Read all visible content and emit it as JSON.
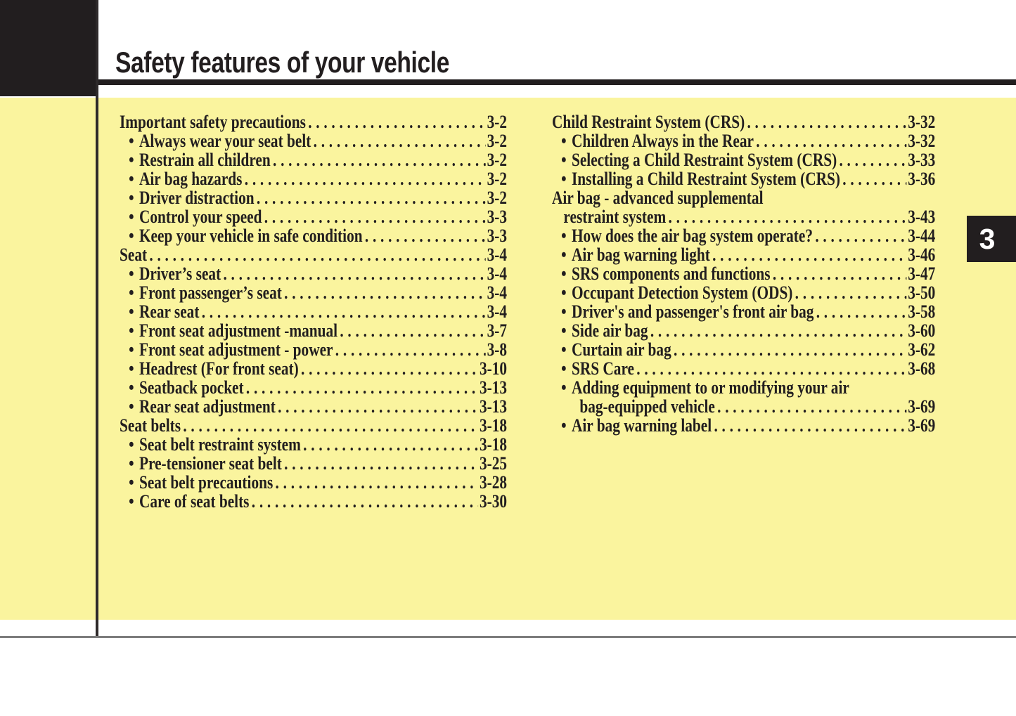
{
  "page": {
    "title": "Safety features of your vehicle",
    "chapter_tab": "3"
  },
  "colors": {
    "highlight_yellow": "#FAF49E",
    "ink": "#221E1F",
    "tab_text": "#FFFFFF",
    "footer_rule_gray": "#7D7D7D"
  },
  "toc": {
    "bullet_char": "•",
    "columns": [
      {
        "name": "left",
        "entries": [
          {
            "t": "h",
            "label": "Important safety precautions",
            "page": "3-2"
          },
          {
            "t": "b",
            "label": "Always wear your seat belt",
            "page": "3-2"
          },
          {
            "t": "b",
            "label": "Restrain all children",
            "page": "3-2"
          },
          {
            "t": "b",
            "label": "Air bag hazards",
            "page": "3-2"
          },
          {
            "t": "b",
            "label": "Driver distraction",
            "page": "3-2"
          },
          {
            "t": "b",
            "label": "Control your speed",
            "page": "3-3"
          },
          {
            "t": "b",
            "label": "Keep your vehicle in safe condition",
            "page": "3-3"
          },
          {
            "t": "h",
            "label": "Seat",
            "page": "3-4"
          },
          {
            "t": "b",
            "label": "Driver’s seat",
            "page": "3-4"
          },
          {
            "t": "b",
            "label": "Front passenger’s seat",
            "page": "3-4"
          },
          {
            "t": "b",
            "label": "Rear seat",
            "page": "3-4"
          },
          {
            "t": "b",
            "label": "Front seat adjustment -manual",
            "page": "3-7"
          },
          {
            "t": "b",
            "label": "Front seat adjustment - power",
            "page": "3-8"
          },
          {
            "t": "b",
            "label": "Headrest (For front seat)",
            "page": "3-10"
          },
          {
            "t": "b",
            "label": "Seatback pocket",
            "page": "3-13"
          },
          {
            "t": "b",
            "label": "Rear seat adjustment",
            "page": "3-13"
          },
          {
            "t": "h",
            "label": "Seat belts",
            "page": "3-18"
          },
          {
            "t": "b",
            "label": "Seat belt restraint system",
            "page": "3-18"
          },
          {
            "t": "b",
            "label": "Pre-tensioner seat belt",
            "page": "3-25"
          },
          {
            "t": "b",
            "label": "Seat belt precautions",
            "page": "3-28"
          },
          {
            "t": "b",
            "label": "Care of seat belts",
            "page": "3-30"
          }
        ]
      },
      {
        "name": "right",
        "entries": [
          {
            "t": "h",
            "label": "Child Restraint System (CRS)",
            "page": "3-32"
          },
          {
            "t": "b",
            "label": "Children Always in the Rear",
            "page": "3-32"
          },
          {
            "t": "b",
            "label": "Selecting a Child Restraint System (CRS)",
            "page": "3-33"
          },
          {
            "t": "b",
            "label": "Installing a Child Restraint System (CRS)",
            "page": "3-36"
          },
          {
            "t": "h1",
            "label": "Air bag - advanced supplemental"
          },
          {
            "t": "h2",
            "label": "restraint system",
            "page": "3-43"
          },
          {
            "t": "b",
            "label": "How does the air bag system operate?",
            "page": "3-44"
          },
          {
            "t": "b",
            "label": "Air bag warning light",
            "page": "3-46"
          },
          {
            "t": "b",
            "label": "SRS components and functions",
            "page": "3-47"
          },
          {
            "t": "b",
            "label": "Occupant Detection System (ODS)",
            "page": "3-50"
          },
          {
            "t": "b",
            "label": "Driver's and passenger's front air bag",
            "page": "3-58"
          },
          {
            "t": "b",
            "label": "Side air bag",
            "page": "3-60"
          },
          {
            "t": "b",
            "label": "Curtain air bag",
            "page": "3-62"
          },
          {
            "t": "b",
            "label": "SRS Care",
            "page": "3-68"
          },
          {
            "t": "b1",
            "label": "Adding equipment to or modifying your air"
          },
          {
            "t": "b2",
            "label": "bag-equipped vehicle",
            "page": "3-69"
          },
          {
            "t": "b",
            "label": "Air bag warning label",
            "page": "3-69"
          }
        ]
      }
    ]
  }
}
